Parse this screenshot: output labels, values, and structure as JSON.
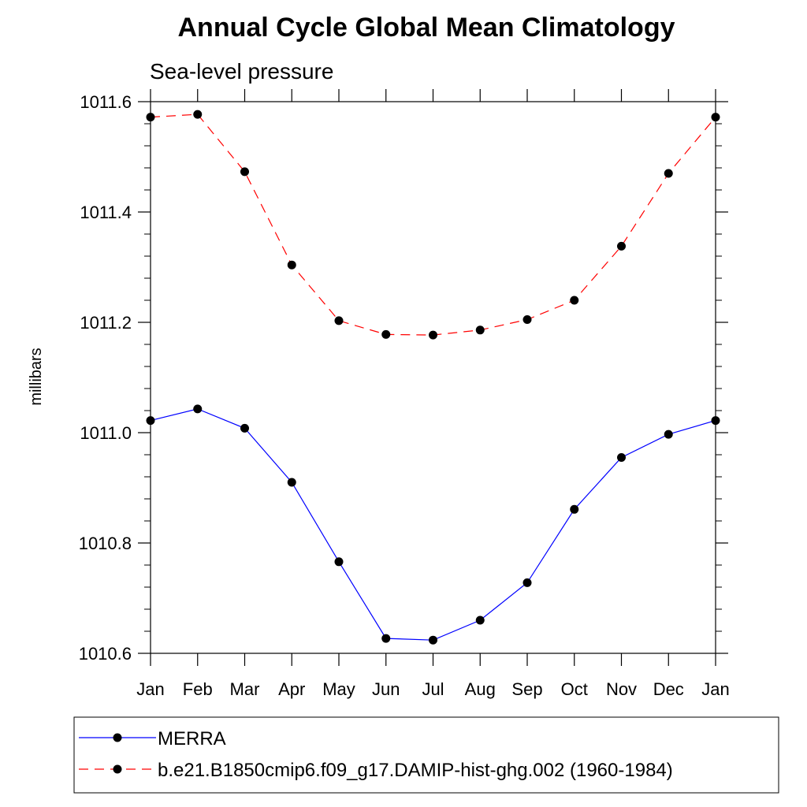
{
  "chart_data": {
    "type": "line",
    "title": "Annual Cycle Global Mean Climatology",
    "subtitle": "Sea-level pressure",
    "ylabel": "millibars",
    "xlabel": "",
    "categories": [
      "Jan",
      "Feb",
      "Mar",
      "Apr",
      "May",
      "Jun",
      "Jul",
      "Aug",
      "Sep",
      "Oct",
      "Nov",
      "Dec",
      "Jan"
    ],
    "ylim": [
      1010.6,
      1011.6
    ],
    "yticks": [
      1010.6,
      1010.8,
      1011.0,
      1011.2,
      1011.4,
      1011.6
    ],
    "ytick_labels": [
      "1010.6",
      "1010.8",
      "1011.0",
      "1011.2",
      "1011.4",
      "1011.6"
    ],
    "series": [
      {
        "name": "MERRA",
        "color": "#0000ff",
        "style": "solid",
        "marker": "circle",
        "values": [
          1011.022,
          1011.043,
          1011.008,
          1010.91,
          1010.766,
          1010.627,
          1010.624,
          1010.66,
          1010.728,
          1010.861,
          1010.955,
          1010.997,
          1011.022
        ]
      },
      {
        "name": "b.e21.B1850cmip6.f09_g17.DAMIP-hist-ghg.002 (1960-1984)",
        "color": "#ff0000",
        "style": "dashed",
        "marker": "circle",
        "values": [
          1011.572,
          1011.577,
          1011.473,
          1011.304,
          1011.203,
          1011.178,
          1011.177,
          1011.186,
          1011.205,
          1011.24,
          1011.338,
          1011.47,
          1011.572
        ]
      }
    ],
    "legend_position": "bottom"
  }
}
